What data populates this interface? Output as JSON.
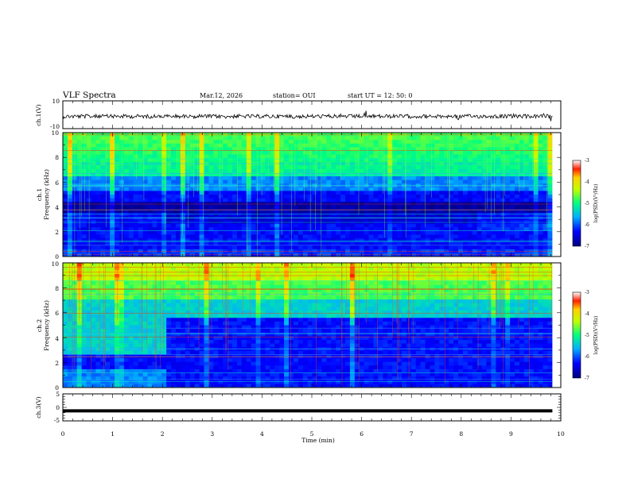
{
  "header": {
    "title": "VLF Spectra",
    "date": "Mar.12, 2026",
    "station": "station= OUI",
    "start": "start  UT =   12: 50: 0"
  },
  "chart_data": [
    {
      "type": "line",
      "name": "ch1-waveform",
      "ylabel": "ch.1(V)",
      "ylim": [
        -10,
        10
      ],
      "yticks": [
        "10",
        "-10"
      ],
      "xlim": [
        0,
        10
      ],
      "trace_level": 0,
      "trace_color": "#000000"
    },
    {
      "type": "heatmap",
      "name": "ch1-spectrogram",
      "ylabel_channel": "ch.1",
      "ylabel": "Frequency  (kHz)",
      "ylim": [
        0,
        10
      ],
      "yticks": [
        "0",
        "2",
        "4",
        "6",
        "8",
        "10"
      ],
      "xlim": [
        0,
        10
      ],
      "colorbar": {
        "label": "log(PSD)(V²/Hz)",
        "range": [
          -7,
          -3
        ],
        "ticks": [
          "-3",
          "-4",
          "-5",
          "-6",
          "-7"
        ]
      },
      "features": {
        "dark_band_khz": [
          3.4,
          4.5
        ],
        "cyan_emission_end_khz": 6.5,
        "data_end_min": 9.83,
        "step_min": [
          2.1,
          8.3
        ]
      }
    },
    {
      "type": "heatmap",
      "name": "ch2-spectrogram",
      "ylabel_channel": "ch.2",
      "ylabel": "Frequency  (kHz)",
      "ylim": [
        0,
        10
      ],
      "yticks": [
        "0",
        "2",
        "4",
        "6",
        "8",
        "10"
      ],
      "xlim": [
        0,
        10
      ],
      "colorbar": {
        "label": "log(PSD)(V²/Hz)",
        "range": [
          -7,
          -3
        ],
        "ticks": [
          "-3",
          "-4",
          "-5",
          "-6",
          "-7"
        ]
      },
      "features": {
        "cyan_to_blue_boundary_khz": [
          5.5,
          2.5
        ],
        "transition_min": 2.1,
        "data_end_min": 9.83
      }
    },
    {
      "type": "line",
      "name": "ch3-waveform",
      "ylabel": "ch.3(V)",
      "ylim": [
        -5,
        5
      ],
      "yticks": [
        "5",
        "0",
        "-5"
      ],
      "xlim": [
        0,
        10
      ],
      "trace_level": -1,
      "trace_color": "#000000"
    }
  ],
  "xaxis": {
    "label": "Time  (min)",
    "ticks": [
      "0",
      "1",
      "2",
      "3",
      "4",
      "5",
      "6",
      "7",
      "8",
      "9",
      "10"
    ]
  }
}
